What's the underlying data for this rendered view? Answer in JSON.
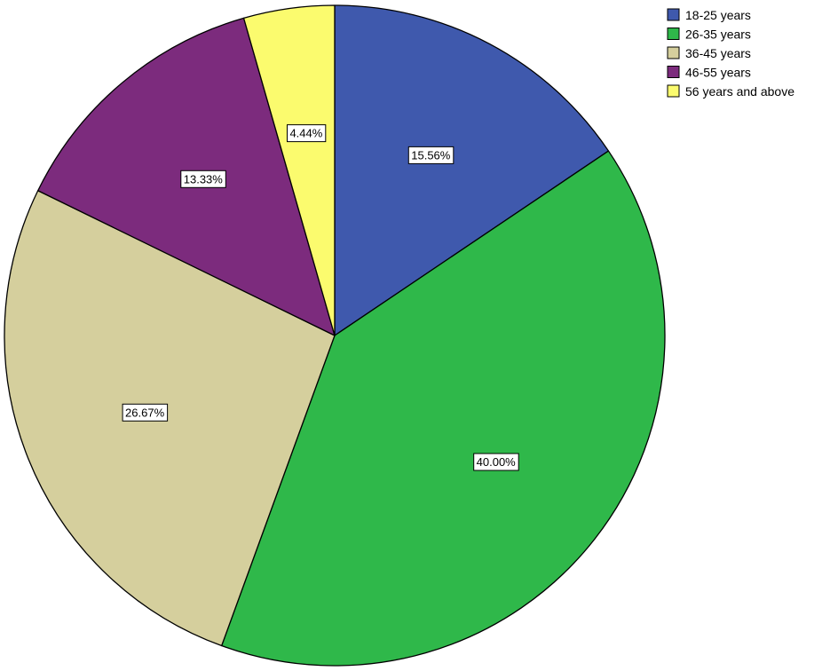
{
  "chart_data": {
    "type": "pie",
    "categories": [
      "18-25 years",
      "26-35 years",
      "36-45 years",
      "46-55 years",
      "56 years and above"
    ],
    "values": [
      15.56,
      40.0,
      26.67,
      13.33,
      4.44
    ],
    "labels": [
      "15.56%",
      "40.00%",
      "26.67%",
      "13.33%",
      "4.44%"
    ],
    "colors": [
      "#3f59ad",
      "#2fb84a",
      "#d5cf9d",
      "#7c2b7d",
      "#fbfb6e"
    ],
    "start": "12 o'clock",
    "direction": "clockwise",
    "legend_position": "top-right"
  }
}
